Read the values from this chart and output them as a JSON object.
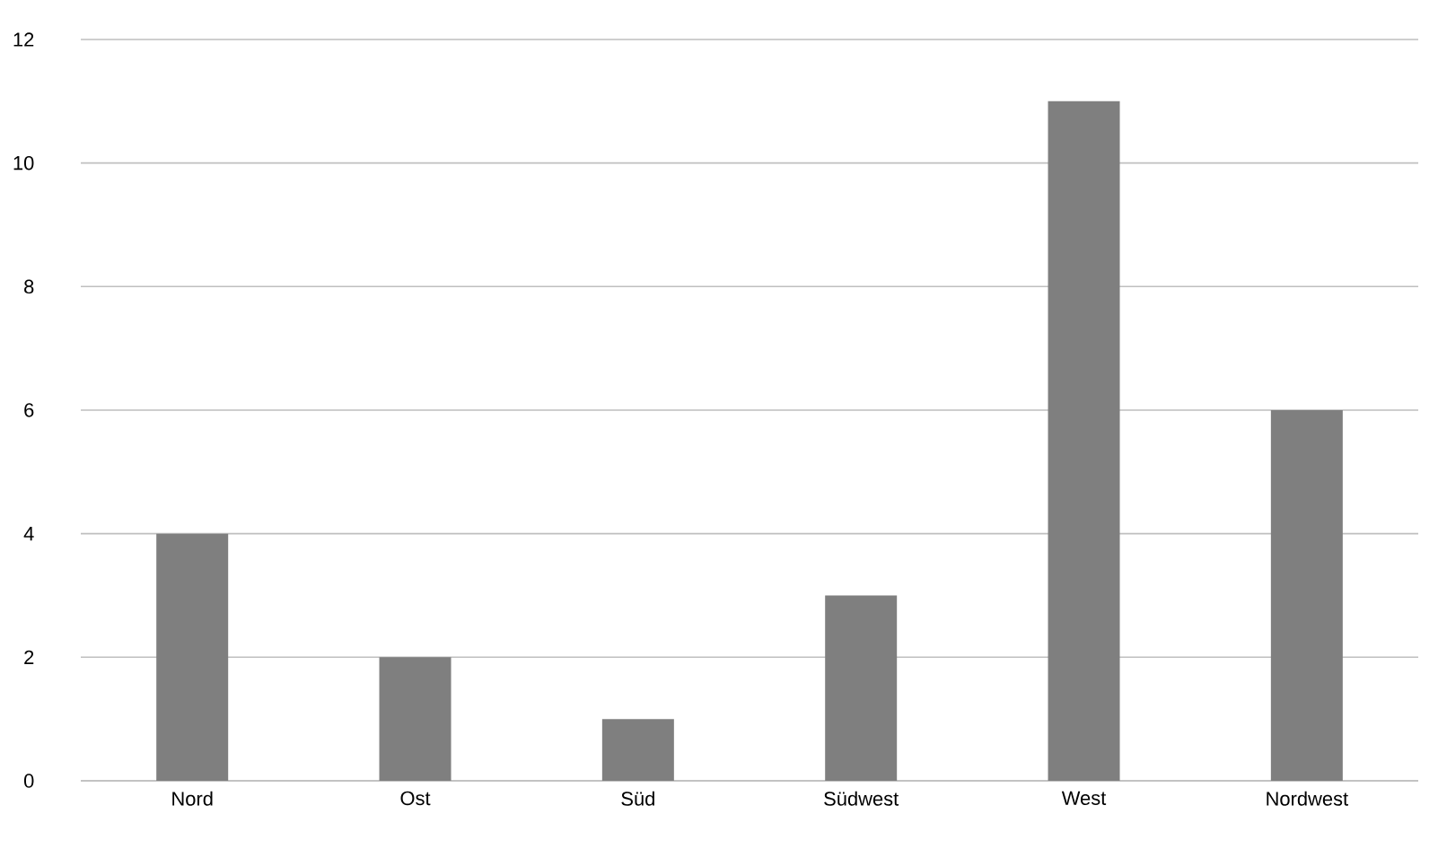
{
  "chart_data": {
    "type": "bar",
    "categories": [
      "Nord",
      "Ost",
      "Süd",
      "Südwest",
      "West",
      "Nordwest"
    ],
    "values": [
      4,
      2,
      1,
      3,
      11,
      6
    ],
    "color": "#7f7f7f",
    "ylim": [
      0,
      12
    ],
    "yticks": [
      0,
      2,
      4,
      6,
      8,
      10,
      12
    ],
    "grid": "y"
  }
}
